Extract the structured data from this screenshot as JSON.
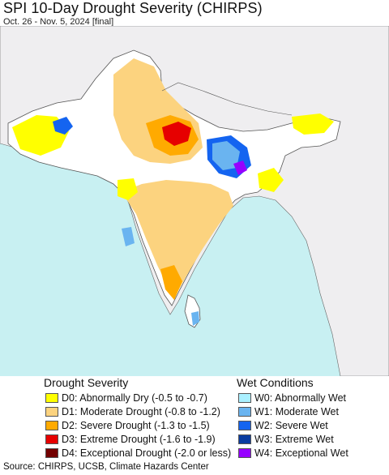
{
  "header": {
    "title": "SPI 10-Day Drought Severity (CHIRPS)",
    "subtitle": "Oct. 26 - Nov. 5, 2024 [final]"
  },
  "map": {
    "colors": {
      "sea": "#c8f0f2",
      "land_other": "#efeef0",
      "region_land": "#ffffff",
      "border": "#555555"
    }
  },
  "legend": {
    "drought_heading": "Drought Severity",
    "wet_heading": "Wet Conditions",
    "drought_items": [
      {
        "label": "D0: Abnormally Dry (-0.5 to -0.7)",
        "color": "#ffff00"
      },
      {
        "label": "D1: Moderate Drought (-0.8 to -1.2)",
        "color": "#fcd37f"
      },
      {
        "label": "D2: Severe Drought (-1.3 to -1.5)",
        "color": "#ffaa00"
      },
      {
        "label": "D3: Extreme Drought (-1.6 to -1.9)",
        "color": "#e60000"
      },
      {
        "label": "D4: Exceptional Drought (-2.0 or less)",
        "color": "#730000"
      }
    ],
    "wet_items": [
      {
        "label": "W0: Abnormally Wet",
        "color": "#aaf0ff"
      },
      {
        "label": "W1: Moderate Wet",
        "color": "#6ab4f0"
      },
      {
        "label": "W2: Severe Wet",
        "color": "#1464f0"
      },
      {
        "label": "W3: Extreme Wet",
        "color": "#0a3ca0"
      },
      {
        "label": "W4: Exceptional Wet",
        "color": "#9600ff"
      }
    ]
  },
  "footer": {
    "source": "Source: CHIRPS, UCSB, Climate Hazards Center"
  }
}
